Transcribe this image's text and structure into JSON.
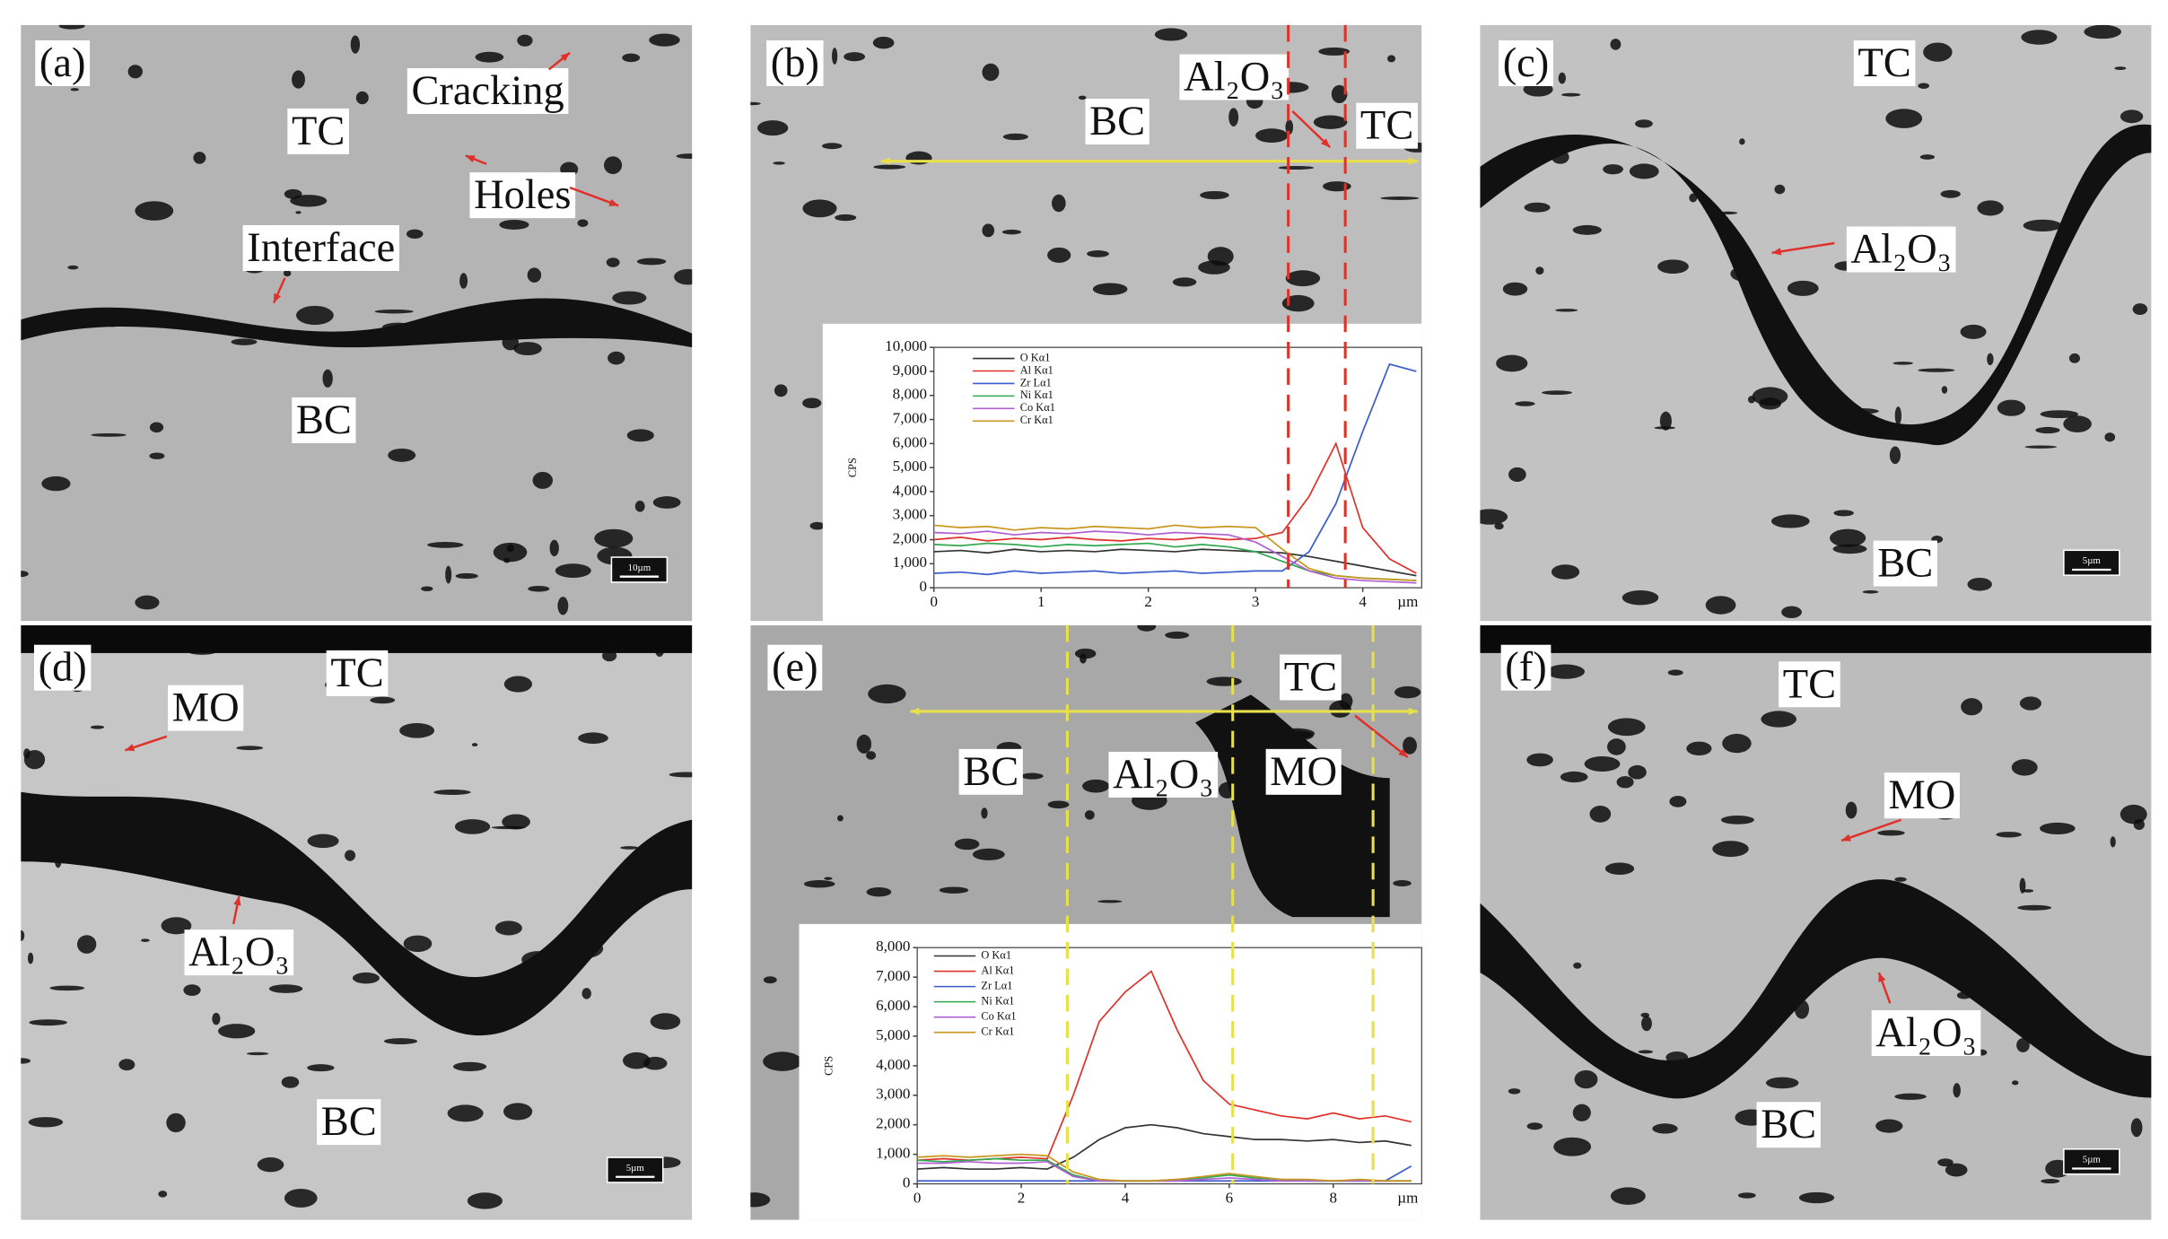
{
  "panels": [
    {
      "label": "(a)",
      "annotations": [
        "TC",
        "Cracking",
        "Holes",
        "Interface",
        "BC"
      ],
      "scale_bar": "10µm"
    },
    {
      "label": "(b)",
      "annotations": [
        "BC",
        "Al₂O₃",
        "TC"
      ]
    },
    {
      "label": "(c)",
      "annotations": [
        "TC",
        "Al₂O₃",
        "BC"
      ],
      "scale_bar": "5µm"
    },
    {
      "label": "(d)",
      "annotations": [
        "MO",
        "TC",
        "Al₂O₃",
        "BC"
      ],
      "scale_bar": "5µm"
    },
    {
      "label": "(e)",
      "annotations": [
        "TC",
        "BC",
        "Al₂O₃",
        "MO"
      ]
    },
    {
      "label": "(f)",
      "annotations": [
        "TC",
        "MO",
        "Al₂O₃",
        "BC"
      ],
      "scale_bar": "5µm"
    }
  ],
  "chart_data": [
    {
      "type": "line",
      "x_label": "µm",
      "y_label": "CPS",
      "x": [
        0,
        0.25,
        0.5,
        0.75,
        1,
        1.25,
        1.5,
        1.75,
        2,
        2.25,
        2.5,
        2.75,
        3,
        3.25,
        3.5,
        3.75,
        4,
        4.25,
        4.5
      ],
      "xlim": [
        0,
        4.55
      ],
      "xticks": [
        0,
        1,
        2,
        3,
        4
      ],
      "ylim": [
        0,
        10000
      ],
      "yticks": [
        0,
        {
          "value": 1000,
          "label": "1,000"
        },
        {
          "value": 2000,
          "label": "2,000"
        },
        {
          "value": 3000,
          "label": "3,000"
        },
        {
          "value": 4000,
          "label": "4,000"
        },
        {
          "value": 5000,
          "label": "5,000"
        },
        {
          "value": 6000,
          "label": "6,000"
        },
        {
          "value": 7000,
          "label": "7,000"
        },
        {
          "value": 8000,
          "label": "8,000"
        },
        {
          "value": 9000,
          "label": "9,000"
        },
        {
          "value": 10000,
          "label": "10,000"
        }
      ],
      "series": [
        {
          "name": "O Kα1",
          "color": "#333333",
          "values": [
            1500,
            1550,
            1450,
            1600,
            1500,
            1550,
            1500,
            1600,
            1550,
            1500,
            1600,
            1550,
            1500,
            1450,
            1300,
            1100,
            900,
            700,
            500
          ]
        },
        {
          "name": "Al Kα1",
          "color": "#e0302a",
          "values": [
            2000,
            2100,
            1950,
            2050,
            2000,
            2100,
            2000,
            1950,
            2050,
            2000,
            2100,
            2000,
            2050,
            2300,
            3800,
            6000,
            2500,
            1200,
            600
          ]
        },
        {
          "name": "Zr Lα1",
          "color": "#3a5ccc",
          "values": [
            600,
            650,
            550,
            700,
            600,
            650,
            700,
            600,
            650,
            700,
            600,
            650,
            700,
            700,
            1500,
            3500,
            6500,
            9300,
            9000
          ]
        },
        {
          "name": "Ni Kα1",
          "color": "#2fa84f",
          "values": [
            1800,
            1750,
            1850,
            1800,
            1700,
            1800,
            1750,
            1800,
            1850,
            1700,
            1800,
            1700,
            1500,
            1100,
            700,
            500,
            400,
            350,
            300
          ]
        },
        {
          "name": "Co Kα1",
          "color": "#b060d0",
          "values": [
            2300,
            2250,
            2350,
            2200,
            2300,
            2250,
            2350,
            2300,
            2200,
            2300,
            2250,
            2200,
            1900,
            1300,
            700,
            400,
            300,
            250,
            200
          ]
        },
        {
          "name": "Cr Kα1",
          "color": "#c8961e",
          "values": [
            2600,
            2500,
            2550,
            2400,
            2500,
            2450,
            2550,
            2500,
            2450,
            2600,
            2500,
            2550,
            2500,
            1600,
            800,
            500,
            400,
            350,
            300
          ]
        }
      ]
    },
    {
      "type": "line",
      "x_label": "µm",
      "y_label": "CPS",
      "x": [
        0,
        0.5,
        1,
        1.5,
        2,
        2.5,
        3,
        3.5,
        4,
        4.5,
        5,
        5.5,
        6,
        6.5,
        7,
        7.5,
        8,
        8.5,
        9,
        9.5
      ],
      "xlim": [
        0,
        9.7
      ],
      "xticks": [
        0,
        2,
        4,
        6,
        8
      ],
      "ylim": [
        0,
        8000
      ],
      "yticks": [
        0,
        {
          "value": 1000,
          "label": "1,000"
        },
        {
          "value": 2000,
          "label": "2,000"
        },
        {
          "value": 3000,
          "label": "3,000"
        },
        {
          "value": 4000,
          "label": "4,000"
        },
        {
          "value": 5000,
          "label": "5,000"
        },
        {
          "value": 6000,
          "label": "6,000"
        },
        {
          "value": 7000,
          "label": "7,000"
        },
        {
          "value": 8000,
          "label": "8,000"
        }
      ],
      "series": [
        {
          "name": "O Kα1",
          "color": "#333333",
          "values": [
            500,
            550,
            500,
            500,
            550,
            500,
            900,
            1500,
            1900,
            2000,
            1900,
            1700,
            1600,
            1500,
            1500,
            1450,
            1500,
            1400,
            1450,
            1300
          ]
        },
        {
          "name": "Al Kα1",
          "color": "#e0302a",
          "values": [
            800,
            850,
            800,
            850,
            900,
            850,
            3000,
            5500,
            6500,
            7200,
            5200,
            3500,
            2700,
            2500,
            2300,
            2200,
            2400,
            2200,
            2300,
            2100
          ]
        },
        {
          "name": "Zr Lα1",
          "color": "#3a5ccc",
          "values": [
            100,
            100,
            100,
            100,
            100,
            100,
            100,
            100,
            100,
            100,
            100,
            100,
            100,
            100,
            100,
            100,
            100,
            100,
            100,
            600
          ]
        },
        {
          "name": "Ni Kα1",
          "color": "#2fa84f",
          "values": [
            800,
            750,
            800,
            850,
            800,
            800,
            300,
            100,
            100,
            100,
            150,
            200,
            300,
            200,
            150,
            100,
            100,
            100,
            100,
            100
          ]
        },
        {
          "name": "Co Kα1",
          "color": "#b060d0",
          "values": [
            700,
            700,
            750,
            700,
            700,
            750,
            250,
            100,
            100,
            100,
            100,
            150,
            200,
            150,
            100,
            100,
            100,
            100,
            100,
            100
          ]
        },
        {
          "name": "Cr Kα1",
          "color": "#c8961e",
          "values": [
            900,
            950,
            900,
            950,
            1000,
            950,
            400,
            150,
            100,
            100,
            150,
            250,
            350,
            250,
            150,
            150,
            100,
            150,
            100,
            100
          ]
        }
      ]
    }
  ]
}
